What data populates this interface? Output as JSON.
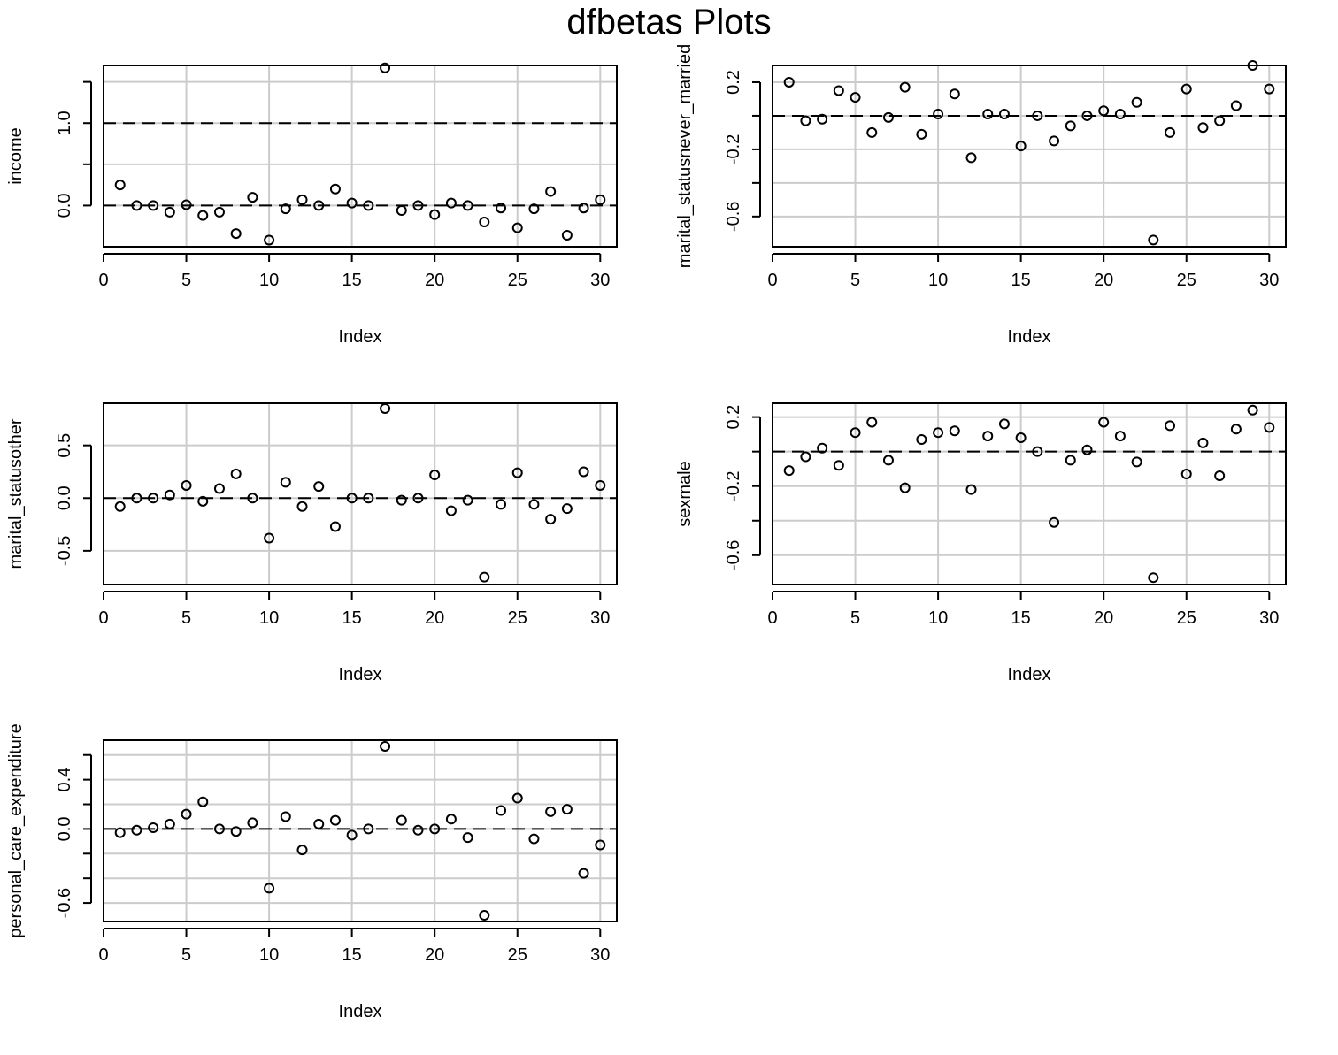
{
  "page": {
    "title": "dfbetas Plots"
  },
  "chart_data": [
    {
      "type": "scatter",
      "xlabel": "Index",
      "ylabel": "income",
      "xlim": [
        0,
        31
      ],
      "ylim": [
        -0.5,
        1.7
      ],
      "x_ticks": [
        0,
        5,
        10,
        15,
        20,
        25,
        30
      ],
      "y_tick_labels": [
        0.0,
        1.0
      ],
      "y_minor_ticks": [
        0.5,
        1.5
      ],
      "grid": true,
      "reference_lines": [
        0.0,
        1.0
      ],
      "x": [
        1,
        2,
        3,
        4,
        5,
        6,
        7,
        8,
        9,
        10,
        11,
        12,
        13,
        14,
        15,
        16,
        17,
        18,
        19,
        20,
        21,
        22,
        23,
        24,
        25,
        26,
        27,
        28,
        29,
        30
      ],
      "y": [
        0.25,
        0.0,
        0.0,
        -0.08,
        0.01,
        -0.12,
        -0.08,
        -0.34,
        0.1,
        -0.42,
        -0.04,
        0.07,
        0.0,
        0.2,
        0.03,
        0.0,
        1.67,
        -0.06,
        0.0,
        -0.11,
        0.03,
        0.0,
        -0.2,
        -0.03,
        -0.27,
        -0.04,
        0.17,
        -0.36,
        -0.03,
        0.07
      ]
    },
    {
      "type": "scatter",
      "xlabel": "Index",
      "ylabel": "marital_statusnever_married",
      "xlim": [
        0,
        31
      ],
      "ylim": [
        -0.78,
        0.3
      ],
      "x_ticks": [
        0,
        5,
        10,
        15,
        20,
        25,
        30
      ],
      "y_tick_labels": [
        -0.6,
        -0.2,
        0.2
      ],
      "y_minor_ticks": [
        -0.4,
        0.0
      ],
      "grid": true,
      "reference_lines": [
        0.0
      ],
      "x": [
        1,
        2,
        3,
        4,
        5,
        6,
        7,
        8,
        9,
        10,
        11,
        12,
        13,
        14,
        15,
        16,
        17,
        18,
        19,
        20,
        21,
        22,
        23,
        24,
        25,
        26,
        27,
        28,
        29,
        30
      ],
      "y": [
        0.2,
        -0.03,
        -0.02,
        0.15,
        0.11,
        -0.1,
        -0.01,
        0.17,
        -0.11,
        0.01,
        0.13,
        -0.25,
        0.01,
        0.01,
        -0.18,
        0.0,
        -0.15,
        -0.06,
        0.0,
        0.03,
        0.01,
        0.08,
        -0.74,
        -0.1,
        0.16,
        -0.07,
        -0.03,
        0.06,
        0.3,
        0.16
      ]
    },
    {
      "type": "scatter",
      "xlabel": "Index",
      "ylabel": "marital_statusother",
      "xlim": [
        0,
        31
      ],
      "ylim": [
        -0.82,
        0.9
      ],
      "x_ticks": [
        0,
        5,
        10,
        15,
        20,
        25,
        30
      ],
      "y_tick_labels": [
        -0.5,
        0.0,
        0.5
      ],
      "grid": true,
      "reference_lines": [
        0.0
      ],
      "x": [
        1,
        2,
        3,
        4,
        5,
        6,
        7,
        8,
        9,
        10,
        11,
        12,
        13,
        14,
        15,
        16,
        17,
        18,
        19,
        20,
        21,
        22,
        23,
        24,
        25,
        26,
        27,
        28,
        29,
        30
      ],
      "y": [
        -0.08,
        0.0,
        0.0,
        0.03,
        0.12,
        -0.03,
        0.09,
        0.23,
        0.0,
        -0.38,
        0.15,
        -0.08,
        0.11,
        -0.27,
        0.0,
        0.0,
        0.85,
        -0.02,
        0.0,
        0.22,
        -0.12,
        -0.02,
        -0.75,
        -0.06,
        0.24,
        -0.06,
        -0.2,
        -0.1,
        0.25,
        0.12
      ]
    },
    {
      "type": "scatter",
      "xlabel": "Index",
      "ylabel": "sexmale",
      "xlim": [
        0,
        31
      ],
      "ylim": [
        -0.77,
        0.28
      ],
      "x_ticks": [
        0,
        5,
        10,
        15,
        20,
        25,
        30
      ],
      "y_tick_labels": [
        -0.6,
        -0.2,
        0.2
      ],
      "y_minor_ticks": [
        -0.4,
        0.0
      ],
      "grid": true,
      "reference_lines": [
        0.0
      ],
      "x": [
        1,
        2,
        3,
        4,
        5,
        6,
        7,
        8,
        9,
        10,
        11,
        12,
        13,
        14,
        15,
        16,
        17,
        18,
        19,
        20,
        21,
        22,
        23,
        24,
        25,
        26,
        27,
        28,
        29,
        30
      ],
      "y": [
        -0.11,
        -0.03,
        0.02,
        -0.08,
        0.11,
        0.17,
        -0.05,
        -0.21,
        0.07,
        0.11,
        0.12,
        -0.22,
        0.09,
        0.16,
        0.08,
        0.0,
        -0.41,
        -0.05,
        0.01,
        0.17,
        0.09,
        -0.06,
        -0.73,
        0.15,
        -0.13,
        0.05,
        -0.14,
        0.13,
        0.24,
        0.14
      ]
    },
    {
      "type": "scatter",
      "xlabel": "Index",
      "ylabel": "personal_care_expenditure",
      "xlim": [
        0,
        31
      ],
      "ylim": [
        -0.75,
        0.72
      ],
      "x_ticks": [
        0,
        5,
        10,
        15,
        20,
        25,
        30
      ],
      "y_tick_labels": [
        -0.6,
        0.0,
        0.4
      ],
      "y_minor_ticks": [
        -0.4,
        -0.2,
        0.2,
        0.6
      ],
      "grid": true,
      "reference_lines": [
        0.0
      ],
      "x": [
        1,
        2,
        3,
        4,
        5,
        6,
        7,
        8,
        9,
        10,
        11,
        12,
        13,
        14,
        15,
        16,
        17,
        18,
        19,
        20,
        21,
        22,
        23,
        24,
        25,
        26,
        27,
        28,
        29,
        30
      ],
      "y": [
        -0.03,
        -0.01,
        0.01,
        0.04,
        0.12,
        0.22,
        0.0,
        -0.02,
        0.05,
        -0.48,
        0.1,
        -0.17,
        0.04,
        0.07,
        -0.05,
        0.0,
        0.67,
        0.07,
        -0.01,
        0.0,
        0.08,
        -0.07,
        -0.7,
        0.15,
        0.25,
        -0.08,
        0.14,
        0.16,
        -0.36,
        -0.13
      ]
    }
  ]
}
